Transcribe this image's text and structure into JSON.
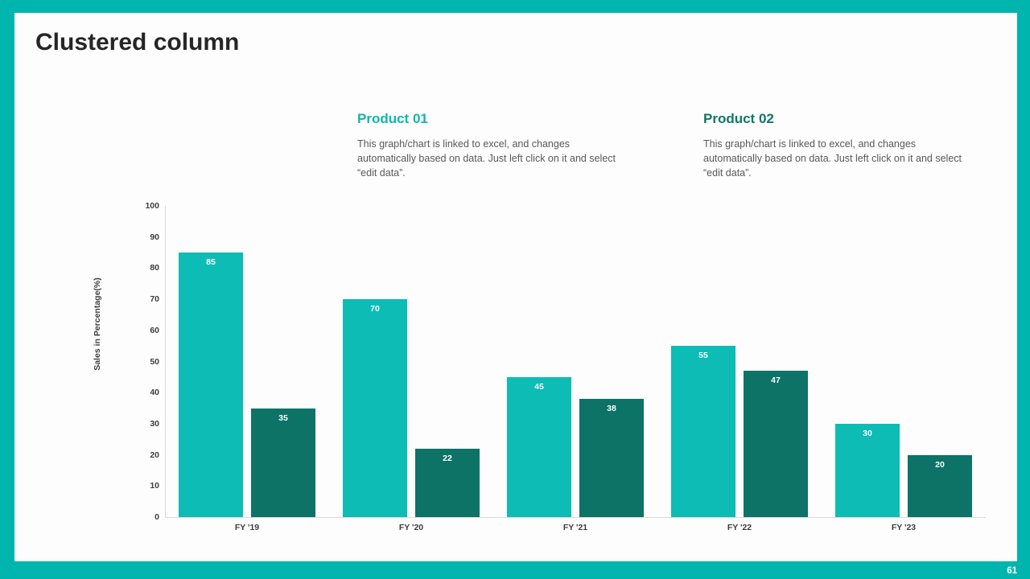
{
  "slide": {
    "title": "Clustered column",
    "page_number": "61",
    "frame_color": "#00b5ad",
    "background_color": "#fdfdfe"
  },
  "products": [
    {
      "heading": "Product 01",
      "heading_color": "#12b5ab",
      "description": "This graph/chart is linked to excel, and changes automatically based on data. Just left click on it and select “edit data”."
    },
    {
      "heading": "Product 02",
      "heading_color": "#0f7669",
      "description": "This graph/chart is linked to excel, and changes automatically based on data. Just left click on it and select “edit data”."
    }
  ],
  "chart_data": {
    "type": "bar",
    "title": "",
    "categories": [
      "FY '19",
      "FY '20",
      "FY '21",
      "FY '22",
      "FY '23"
    ],
    "series": [
      {
        "name": "Product 01",
        "color": "#0dbcb4",
        "values": [
          85,
          70,
          45,
          55,
          30
        ]
      },
      {
        "name": "Product 02",
        "color": "#0d7366",
        "values": [
          35,
          22,
          38,
          47,
          20
        ]
      }
    ],
    "ylabel": "Sales in Percentage(%)",
    "xlabel": "",
    "ylim": [
      0,
      100
    ],
    "ytick_step": 10,
    "grid": false,
    "legend": "none",
    "bar_labels": true,
    "bar_label_color": "#ffffff",
    "axis_line_color": "#d9d9d9"
  }
}
